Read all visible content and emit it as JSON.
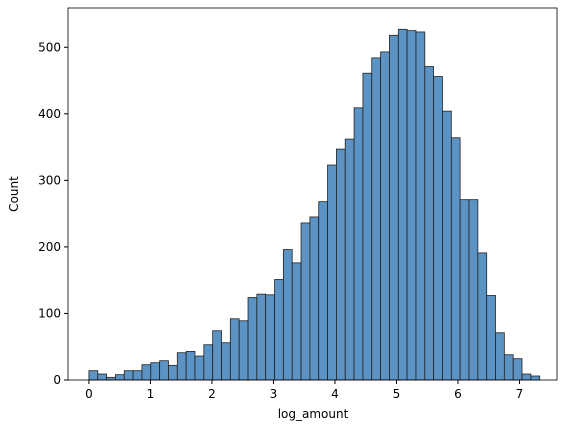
{
  "chart_data": {
    "type": "histogram",
    "xlabel": "log_amount",
    "ylabel": "Count",
    "bins": [
      0,
      0.144,
      0.287,
      0.431,
      0.575,
      0.719,
      0.862,
      1.006,
      1.15,
      1.293,
      1.437,
      1.581,
      1.724,
      1.868,
      2.012,
      2.156,
      2.299,
      2.443,
      2.587,
      2.73,
      2.874,
      3.018,
      3.161,
      3.305,
      3.449,
      3.593,
      3.736,
      3.88,
      4.024,
      4.167,
      4.311,
      4.455,
      4.598,
      4.742,
      4.886,
      5.03,
      5.173,
      5.317,
      5.461,
      5.604,
      5.748,
      5.892,
      6.035,
      6.179,
      6.323,
      6.467,
      6.61,
      6.754,
      6.898,
      7.041,
      7.185,
      7.329
    ],
    "values": [
      14,
      9,
      4,
      8,
      14,
      14,
      23,
      26,
      29,
      22,
      41,
      43,
      36,
      53,
      74,
      56,
      92,
      89,
      124,
      129,
      128,
      151,
      196,
      176,
      236,
      245,
      268,
      323,
      347,
      362,
      409,
      461,
      484,
      493,
      518,
      527,
      525,
      523,
      471,
      456,
      404,
      364,
      271,
      271,
      191,
      127,
      71,
      38,
      32,
      9,
      6
    ],
    "color": "#5a93c4",
    "edgecolor": "#222222",
    "xlim": [
      -0.34,
      7.61
    ],
    "ylim": [
      0,
      559
    ],
    "xticks": [
      0,
      1,
      2,
      3,
      4,
      5,
      6,
      7
    ],
    "yticks": [
      0,
      100,
      200,
      300,
      400,
      500
    ]
  }
}
